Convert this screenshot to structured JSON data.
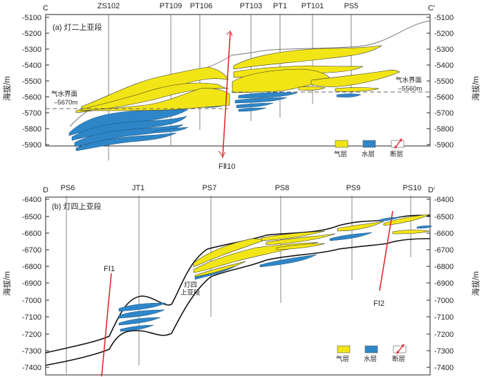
{
  "colors": {
    "gas": "#F2E515",
    "water": "#2E86C8",
    "fault": "#E1262C",
    "line": "#111111"
  },
  "panels": [
    {
      "label": "(a) 灯二上亚段",
      "left_end": "C",
      "right_end": "C′",
      "ylabel_left": "海拔/m",
      "ylabel_right": "海拔/m",
      "ticks": [
        "-5100",
        "-5200",
        "-5300",
        "-5400",
        "-5500",
        "-5600",
        "-5700",
        "-5800",
        "-5900"
      ],
      "wells": [
        "ZS102",
        "PT109",
        "PT106",
        "PT103",
        "PT1",
        "PT101",
        "PS5"
      ],
      "fault": "FⅡ10",
      "gwc_left": {
        "line1": "气水界面",
        "line2": "–5670m"
      },
      "gwc_right": {
        "line1": "气水界面",
        "line2": "–5560m"
      }
    },
    {
      "label": "(b) 灯四上亚段",
      "left_end": "D",
      "right_end": "D′",
      "ylabel_left": "海拔/m",
      "ylabel_right": "海拔/m",
      "ticks": [
        "-6400",
        "-6500",
        "-6600",
        "-6700",
        "-6800",
        "-6900",
        "-7000",
        "-7100",
        "-7200",
        "-7300",
        "-7400"
      ],
      "wells": [
        "PS6",
        "JT1",
        "PS7",
        "PS8",
        "PS9",
        "PS10"
      ],
      "faults": [
        "FⅠ1",
        "FⅠ2"
      ],
      "unit": {
        "line1": "灯四",
        "line2": "上亚段"
      }
    }
  ],
  "legend": {
    "gas": "气层",
    "water": "水层",
    "fault": "断层"
  }
}
